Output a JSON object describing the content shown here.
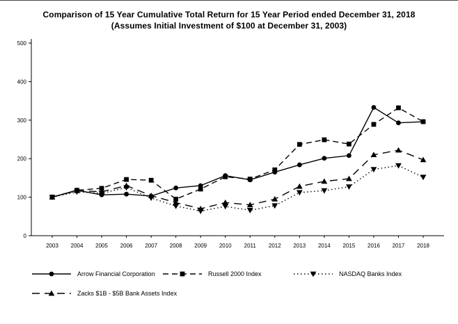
{
  "title": {
    "line1": "Comparison of 15 Year Cumulative Total Return for 15 Year Period ended December 31, 2018",
    "line2": "(Assumes Initial Investment of $100 at December 31, 2003)"
  },
  "chart_data": {
    "type": "line",
    "categories": [
      "2003",
      "2004",
      "2005",
      "2006",
      "2007",
      "2008",
      "2009",
      "2010",
      "2011",
      "2012",
      "2013",
      "2014",
      "2015",
      "2016",
      "2017",
      "2018"
    ],
    "ylim": [
      0,
      500
    ],
    "ytick_step": 100,
    "grid": false,
    "legend_position": "bottom",
    "line_color": "#000000",
    "series": [
      {
        "name": "Arrow Financial Corporation",
        "marker": "circle",
        "dash": "solid",
        "values": [
          100,
          118,
          106,
          108,
          103,
          124,
          130,
          156,
          145,
          165,
          184,
          201,
          208,
          333,
          293,
          296
        ]
      },
      {
        "name": "Russell 2000 Index",
        "marker": "square",
        "dash": "dashed",
        "values": [
          100,
          118,
          123,
          146,
          144,
          95,
          121,
          153,
          147,
          171,
          237,
          249,
          238,
          289,
          332,
          296
        ]
      },
      {
        "name": "NASDAQ Banks Index",
        "marker": "triangle-down",
        "dash": "dotted",
        "values": [
          100,
          114,
          110,
          125,
          98,
          77,
          64,
          76,
          66,
          78,
          112,
          117,
          127,
          172,
          182,
          152
        ]
      },
      {
        "name": "Zacks $1B - $5B Bank Assets Index",
        "marker": "triangle-up",
        "dash": "longdash",
        "values": [
          100,
          117,
          114,
          130,
          104,
          86,
          70,
          86,
          80,
          95,
          128,
          141,
          148,
          210,
          222,
          197
        ]
      }
    ]
  }
}
